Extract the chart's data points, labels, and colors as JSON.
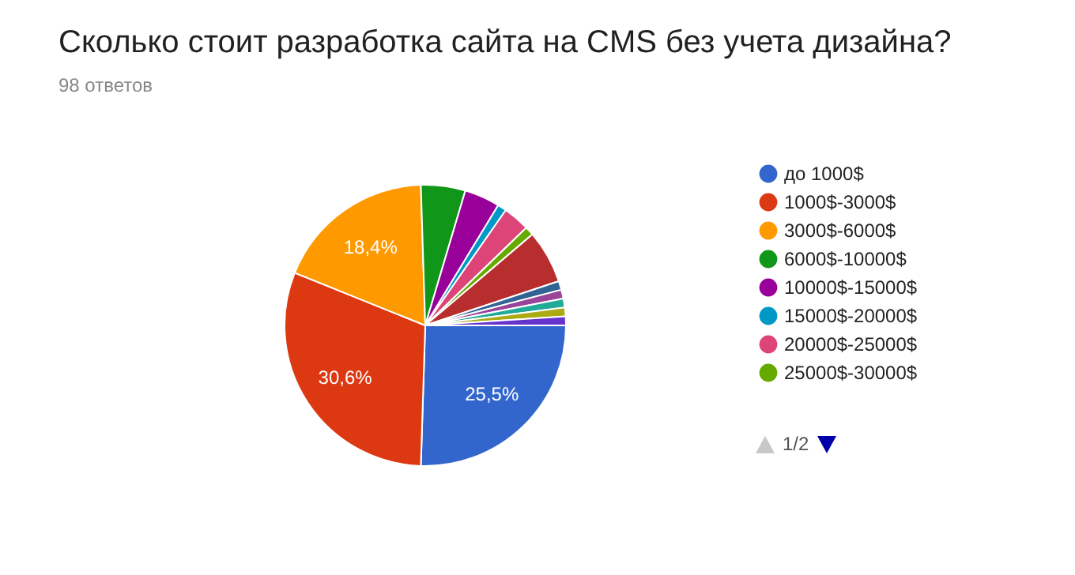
{
  "chart_data": {
    "type": "pie",
    "title": "Сколько стоит разработка сайта на CMS без учета дизайна?",
    "subtitle": "98 ответов",
    "categories": [
      "до 1000$",
      "1000$-3000$",
      "3000$-6000$",
      "6000$-10000$",
      "10000$-15000$",
      "15000$-20000$",
      "20000$-25000$",
      "25000$-30000$",
      null,
      null,
      null,
      null,
      null,
      null
    ],
    "values": [
      25.5,
      30.6,
      18.4,
      5.1,
      4.08,
      1.02,
      3.06,
      1.02,
      6.12,
      1.02,
      1.02,
      1.02,
      1.02,
      1.02
    ],
    "value_labels": [
      "25,5%",
      "30,6%",
      "18,4%",
      null,
      null,
      null,
      null,
      null,
      null,
      null,
      null,
      null,
      null,
      null
    ],
    "colors": [
      "#3366cc",
      "#dc3912",
      "#ff9900",
      "#109618",
      "#990099",
      "#0099c6",
      "#dd4477",
      "#66aa00",
      "#b82e2e",
      "#316395",
      "#994499",
      "#22aa99",
      "#aaaa11",
      "#6633cc"
    ],
    "legend": "right",
    "annotations": [
      "1/2"
    ]
  }
}
